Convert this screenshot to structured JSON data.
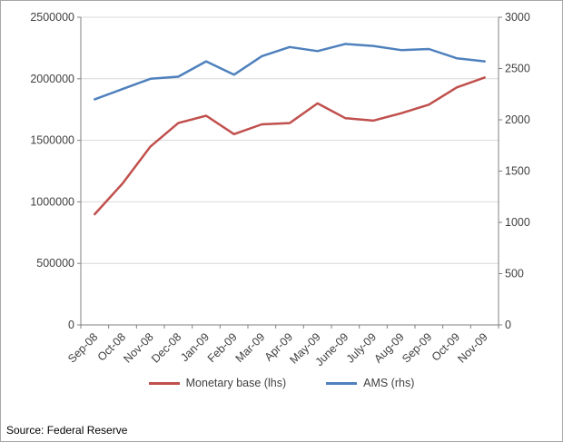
{
  "source": "Source: Federal Reserve",
  "chart_data": {
    "type": "line",
    "title": "",
    "grid": true,
    "legend_position": "bottom",
    "categories": [
      "Sep-08",
      "Oct-08",
      "Nov-08",
      "Dec-08",
      "Jan-09",
      "Feb-09",
      "Mar-09",
      "Apr-09",
      "May-09",
      "June-09",
      "July-09",
      "Aug-09",
      "Sep-09",
      "Oct-09",
      "Nov-09"
    ],
    "series": [
      {
        "name": "Monetary base (lhs)",
        "axis": "left",
        "color": "#C0504D",
        "values": [
          900000,
          1150000,
          1450000,
          1640000,
          1700000,
          1550000,
          1630000,
          1640000,
          1800000,
          1680000,
          1660000,
          1720000,
          1790000,
          1930000,
          2010000
        ]
      },
      {
        "name": "AMS (rhs)",
        "axis": "right",
        "color": "#4F81BD",
        "values": [
          2200,
          2300,
          2400,
          2420,
          2570,
          2440,
          2620,
          2710,
          2670,
          2740,
          2720,
          2680,
          2690,
          2600,
          2570
        ]
      }
    ],
    "left_axis": {
      "min": 0,
      "max": 2500000,
      "step": 500000,
      "tick_labels": [
        "0",
        "500000",
        "1000000",
        "1500000",
        "2000000",
        "2500000"
      ]
    },
    "right_axis": {
      "min": 0,
      "max": 3000,
      "step": 500,
      "tick_labels": [
        "0",
        "500",
        "1000",
        "1500",
        "2000",
        "2500",
        "3000"
      ]
    },
    "colors": {
      "gridline": "#d9d9d9",
      "axis_line": "#808080",
      "label_text": "#404040"
    }
  }
}
